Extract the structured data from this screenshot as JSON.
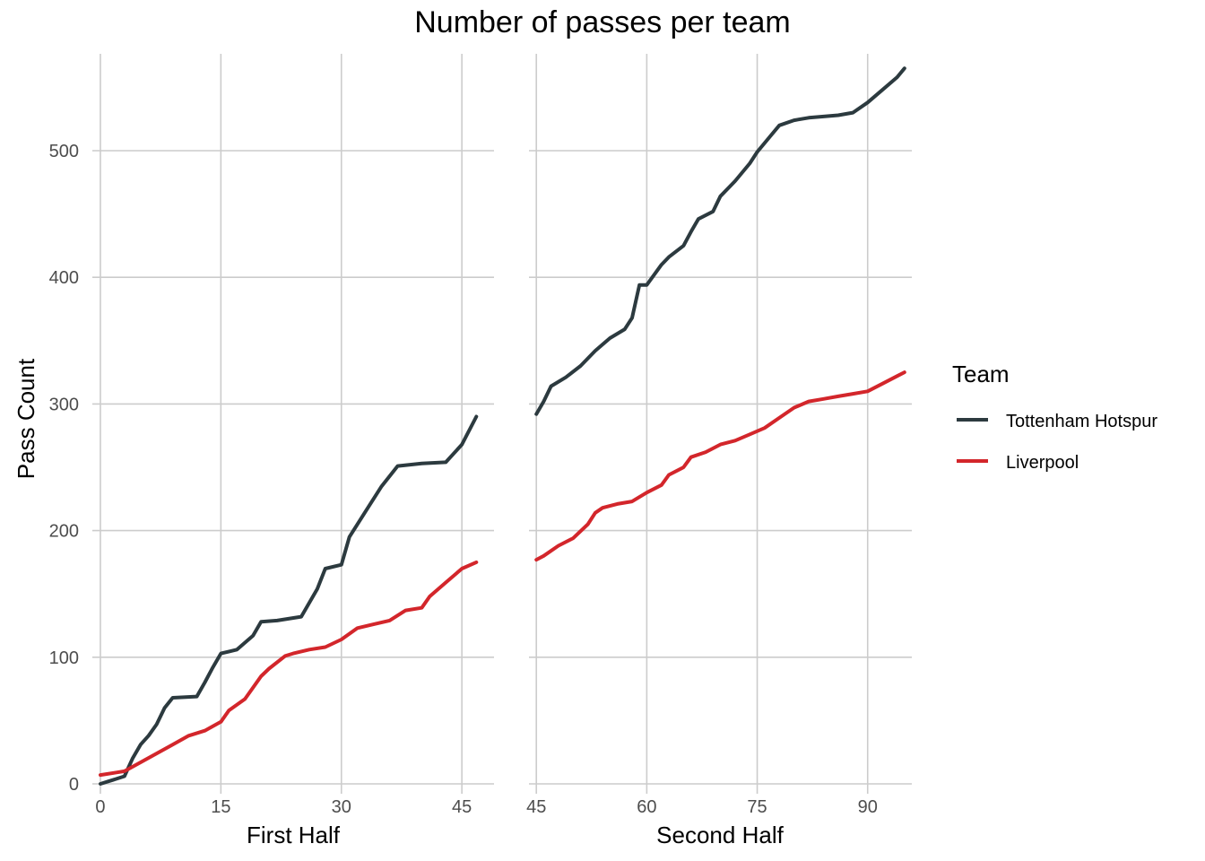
{
  "chart_data": {
    "type": "line",
    "title": "Number of passes per team",
    "ylabel": "Pass Count",
    "ylim": [
      0,
      565
    ],
    "y_ticks": [
      0,
      100,
      200,
      300,
      400,
      500
    ],
    "grid": true,
    "legend": {
      "title": "Team",
      "placement": "right",
      "entries": [
        {
          "name": "Tottenham Hotspur",
          "color": "#2c3a3f"
        },
        {
          "name": "Liverpool",
          "color": "#d3262b"
        }
      ]
    },
    "panels": [
      {
        "xlabel": "First Half",
        "xlim": [
          -1,
          49
        ],
        "x_ticks": [
          0,
          15,
          30,
          45
        ],
        "series": [
          {
            "name": "Tottenham Hotspur",
            "color": "#2c3a3f",
            "x": [
              0,
              1,
              2,
              3,
              4,
              5,
              6,
              7,
              8,
              9,
              12,
              13,
              14,
              15,
              17,
              19,
              20,
              22,
              25,
              27,
              28,
              30,
              31,
              33,
              35,
              37,
              40,
              43,
              45,
              46.8
            ],
            "y": [
              0,
              2,
              4,
              6,
              20,
              31,
              38,
              47,
              60,
              68,
              69,
              80,
              92,
              103,
              106,
              117,
              128,
              129,
              132,
              154,
              170,
              173,
              195,
              215,
              235,
              251,
              253,
              254,
              268,
              290
            ]
          },
          {
            "name": "Liverpool",
            "color": "#d3262b",
            "x": [
              0,
              2,
              3,
              5,
              7,
              9,
              11,
              13,
              15,
              16,
              18,
              20,
              21,
              23,
              24,
              26,
              28,
              30,
              32,
              34,
              36,
              38,
              40,
              41,
              43,
              45,
              46.8
            ],
            "y": [
              7,
              9,
              10,
              17,
              24,
              31,
              38,
              42,
              49,
              58,
              67,
              85,
              91,
              101,
              103,
              106,
              108,
              114,
              123,
              126,
              129,
              137,
              139,
              148,
              159,
              170,
              175
            ]
          }
        ]
      },
      {
        "xlabel": "Second Half",
        "xlim": [
          44,
          96
        ],
        "x_ticks": [
          45,
          60,
          75,
          90
        ],
        "series": [
          {
            "name": "Tottenham Hotspur",
            "color": "#2c3a3f",
            "x": [
              45,
              46,
              47,
              49,
              51,
              53,
              55,
              57,
              58,
              59,
              60,
              62,
              63,
              65,
              66,
              67,
              69,
              70,
              72,
              74,
              75,
              77,
              78,
              80,
              82,
              84,
              86,
              88,
              90,
              92,
              94,
              95
            ],
            "y": [
              292,
              302,
              314,
              321,
              330,
              342,
              352,
              359,
              368,
              394,
              394,
              410,
              416,
              425,
              436,
              446,
              452,
              464,
              476,
              490,
              499,
              513,
              520,
              524,
              526,
              527,
              528,
              530,
              538,
              548,
              558,
              565
            ]
          },
          {
            "name": "Liverpool",
            "color": "#d3262b",
            "x": [
              45,
              46,
              48,
              50,
              52,
              53,
              54,
              56,
              58,
              60,
              62,
              63,
              65,
              66,
              68,
              70,
              72,
              74,
              76,
              78,
              80,
              82,
              84,
              86,
              88,
              90,
              92,
              94,
              95
            ],
            "y": [
              177,
              180,
              188,
              194,
              205,
              214,
              218,
              221,
              223,
              230,
              236,
              244,
              250,
              258,
              262,
              268,
              271,
              276,
              281,
              289,
              297,
              302,
              304,
              306,
              308,
              310,
              316,
              322,
              325
            ]
          }
        ]
      }
    ]
  }
}
